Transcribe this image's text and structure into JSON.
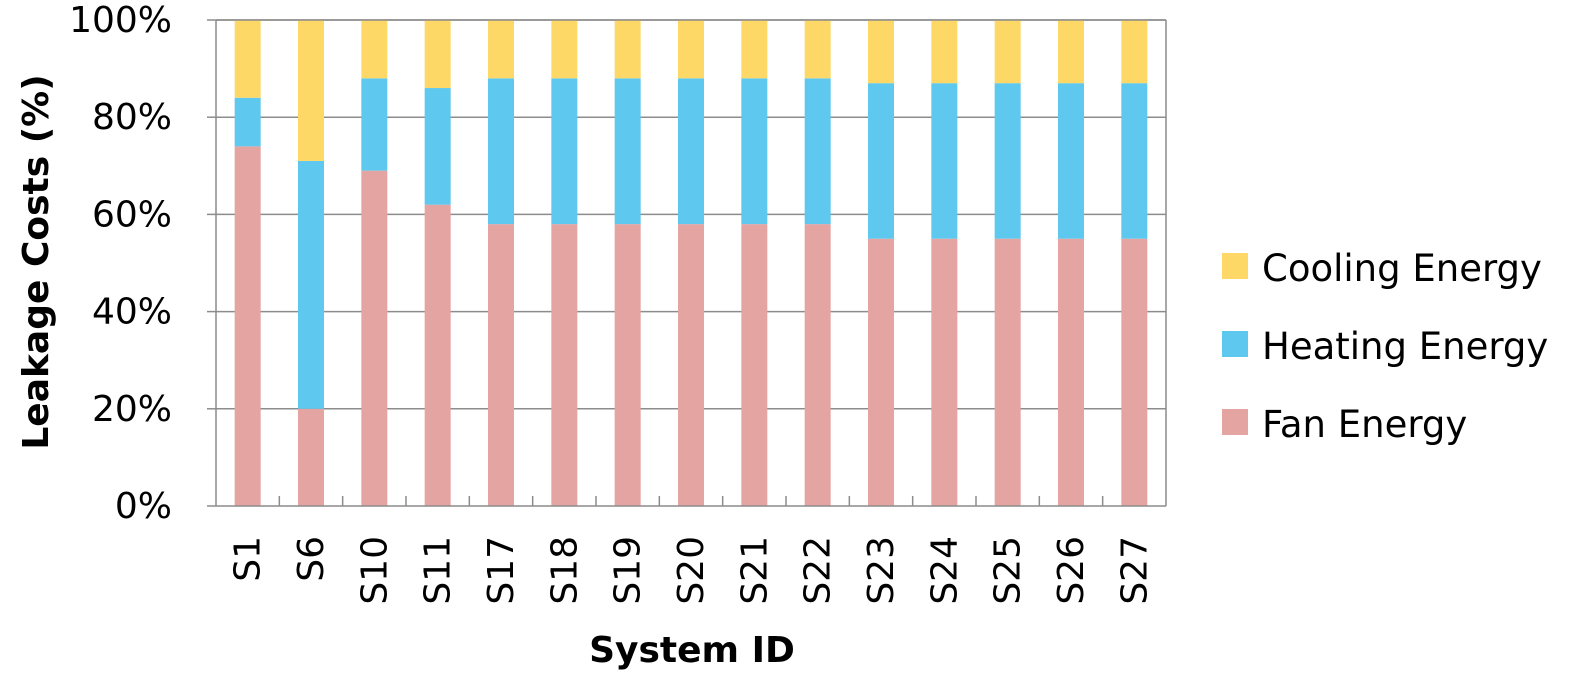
{
  "chart_data": {
    "type": "bar",
    "stacked": true,
    "title": "",
    "xlabel": "System ID",
    "ylabel": "Leakage Costs (%)",
    "ylim": [
      0,
      100
    ],
    "y_ticks": [
      "0%",
      "20%",
      "40%",
      "60%",
      "80%",
      "100%"
    ],
    "grid": "horizontal",
    "legend_position": "right",
    "categories": [
      "S1",
      "S6",
      "S10",
      "S11",
      "S17",
      "S18",
      "S19",
      "S20",
      "S21",
      "S22",
      "S23",
      "S24",
      "S25",
      "S26",
      "S27"
    ],
    "series": [
      {
        "name": "Fan Energy",
        "color": "#E4A4A2",
        "values": [
          74,
          20,
          69,
          62,
          58,
          58,
          58,
          58,
          58,
          58,
          55,
          55,
          55,
          55,
          55
        ]
      },
      {
        "name": "Heating Energy",
        "color": "#5EC8EF",
        "values": [
          10,
          51,
          19,
          24,
          30,
          30,
          30,
          30,
          30,
          30,
          32,
          32,
          32,
          32,
          32
        ]
      },
      {
        "name": "Cooling Energy",
        "color": "#FDD866",
        "values": [
          16,
          29,
          12,
          14,
          12,
          12,
          12,
          12,
          12,
          12,
          13,
          13,
          13,
          13,
          13
        ]
      }
    ],
    "legend_order": [
      "Cooling Energy",
      "Heating Energy",
      "Fan Energy"
    ]
  }
}
